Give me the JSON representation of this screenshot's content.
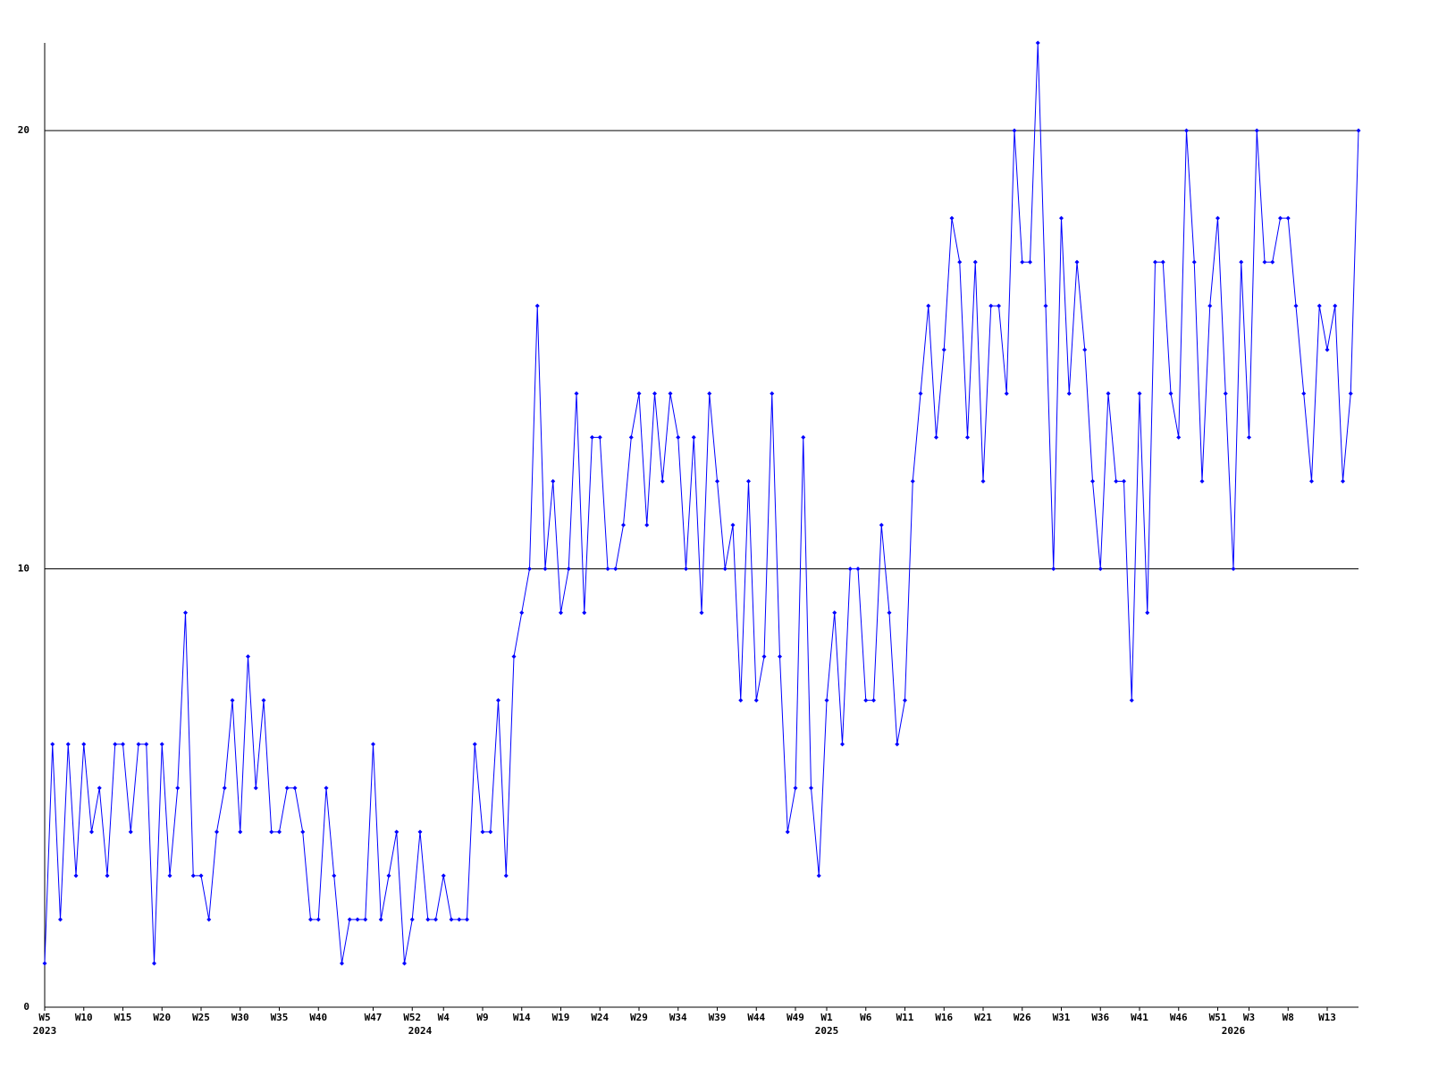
{
  "chart_data": {
    "type": "line",
    "categories": [
      "W5",
      null,
      null,
      null,
      null,
      "W10",
      null,
      null,
      null,
      null,
      "W15",
      null,
      null,
      null,
      null,
      "W20",
      null,
      null,
      null,
      null,
      "W25",
      null,
      null,
      null,
      null,
      "W30",
      null,
      null,
      null,
      null,
      "W35",
      null,
      null,
      null,
      null,
      "W40",
      null,
      null,
      null,
      null,
      null,
      null,
      "W47",
      null,
      null,
      null,
      null,
      "W52",
      null,
      null,
      null,
      "W4",
      null,
      null,
      null,
      null,
      "W9",
      null,
      null,
      null,
      null,
      "W14",
      null,
      null,
      null,
      null,
      "W19",
      null,
      null,
      null,
      null,
      "W24",
      null,
      null,
      null,
      null,
      "W29",
      null,
      null,
      null,
      null,
      "W34",
      null,
      null,
      null,
      null,
      "W39",
      null,
      null,
      null,
      null,
      "W44",
      null,
      null,
      null,
      null,
      "W49",
      null,
      null,
      null,
      "W1",
      null,
      null,
      null,
      null,
      "W6",
      null,
      null,
      null,
      null,
      "W11",
      null,
      null,
      null,
      null,
      "W16",
      null,
      null,
      null,
      null,
      "W21",
      null,
      null,
      null,
      null,
      "W26",
      null,
      null,
      null,
      null,
      "W31",
      null,
      null,
      null,
      null,
      "W36",
      null,
      null,
      null,
      null,
      "W41",
      null,
      null,
      null,
      null,
      "W46",
      null,
      null,
      null,
      null,
      "W51",
      null,
      null,
      null,
      "W3",
      null,
      null,
      null,
      null,
      "W8",
      null,
      null,
      null,
      null,
      "W13",
      null,
      null,
      null,
      null
    ],
    "years": [
      "2023",
      null,
      null,
      null,
      null,
      null,
      null,
      null,
      null,
      null,
      null,
      null,
      null,
      null,
      null,
      null,
      null,
      null,
      null,
      null,
      null,
      null,
      null,
      null,
      null,
      null,
      null,
      null,
      null,
      null,
      null,
      null,
      null,
      null,
      null,
      null,
      null,
      null,
      null,
      null,
      null,
      null,
      null,
      null,
      null,
      null,
      null,
      null,
      "2024",
      null,
      null,
      null,
      null,
      null,
      null,
      null,
      null,
      null,
      null,
      null,
      null,
      null,
      null,
      null,
      null,
      null,
      null,
      null,
      null,
      null,
      null,
      null,
      null,
      null,
      null,
      null,
      null,
      null,
      null,
      null,
      null,
      null,
      null,
      null,
      null,
      null,
      null,
      null,
      null,
      null,
      null,
      null,
      null,
      null,
      null,
      null,
      null,
      null,
      null,
      null,
      "2025",
      null,
      null,
      null,
      null,
      null,
      null,
      null,
      null,
      null,
      null,
      null,
      null,
      null,
      null,
      null,
      null,
      null,
      null,
      null,
      null,
      null,
      null,
      null,
      null,
      null,
      null,
      null,
      null,
      null,
      null,
      null,
      null,
      null,
      null,
      null,
      null,
      null,
      null,
      null,
      null,
      null,
      null,
      null,
      null,
      null,
      null,
      null,
      null,
      null,
      null,
      null,
      "2026",
      null,
      null,
      null,
      null,
      null,
      null,
      null,
      null,
      null,
      null,
      null,
      null,
      null,
      null,
      null,
      null
    ],
    "values": [
      1,
      6,
      2,
      6,
      3,
      6,
      4,
      5,
      3,
      6,
      6,
      4,
      6,
      6,
      1,
      6,
      3,
      5,
      9,
      3,
      3,
      2,
      4,
      5,
      7,
      4,
      8,
      5,
      7,
      4,
      4,
      5,
      5,
      4,
      2,
      2,
      5,
      3,
      1,
      2,
      2,
      2,
      6,
      2,
      3,
      4,
      1,
      2,
      4,
      2,
      2,
      3,
      2,
      2,
      2,
      6,
      4,
      4,
      7,
      3,
      8,
      9,
      10,
      16,
      10,
      12,
      9,
      10,
      14,
      9,
      13,
      13,
      10,
      10,
      11,
      13,
      14,
      11,
      14,
      12,
      14,
      13,
      10,
      13,
      9,
      14,
      12,
      10,
      11,
      7,
      12,
      7,
      8,
      14,
      8,
      4,
      5,
      13,
      5,
      3,
      7,
      9,
      6,
      10,
      10,
      7,
      7,
      11,
      9,
      6,
      7,
      12,
      14,
      16,
      13,
      15,
      18,
      17,
      13,
      17,
      12,
      16,
      16,
      14,
      20,
      17,
      17,
      22,
      16,
      10,
      18,
      14,
      17,
      15,
      12,
      10,
      14,
      12,
      12,
      7,
      14,
      9,
      17,
      17,
      14,
      13,
      20,
      17,
      12,
      16,
      18,
      14,
      10,
      17,
      13,
      20,
      17,
      17,
      18,
      18,
      16,
      14,
      12,
      16,
      15,
      16,
      12,
      14,
      20
    ],
    "color": "#0000ff",
    "ylim": [
      0,
      22
    ],
    "yticks": [
      0,
      10,
      20
    ],
    "grid": true
  }
}
